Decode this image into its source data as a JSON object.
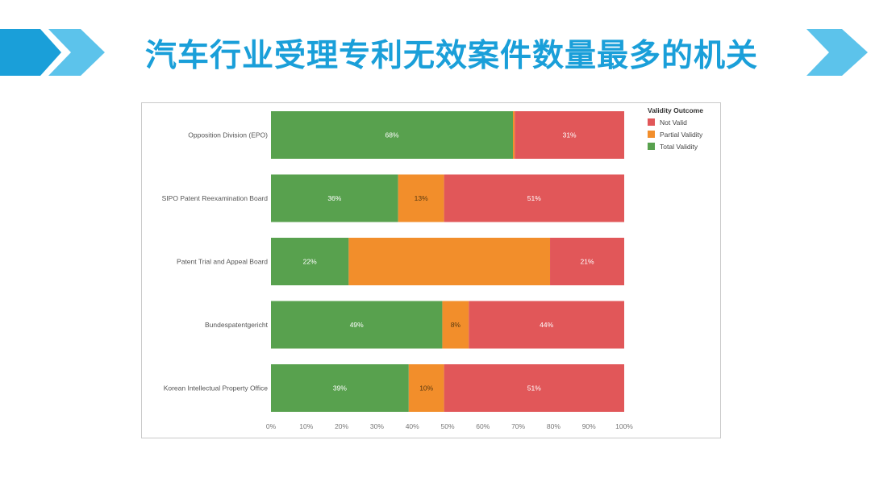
{
  "slide": {
    "title": "汽车行业受理专利无效案件数量最多的机关"
  },
  "chart_data": {
    "type": "bar",
    "orientation": "horizontal",
    "stacked": true,
    "categories": [
      "Opposition Division (EPO)",
      "SIPO Patent Reexamination Board",
      "Patent Trial and Appeal Board",
      "Bundespatentgericht",
      "Korean Intellectual Property Office"
    ],
    "series": [
      {
        "name": "Total Validity",
        "color": "#58a14e",
        "values": [
          68.5,
          36,
          22,
          48.5,
          39
        ],
        "labels": [
          "68%",
          "36%",
          "22%",
          "49%",
          "39%"
        ]
      },
      {
        "name": "Partial Validity",
        "color": "#f28e2b",
        "values": [
          0.5,
          13,
          57,
          7.5,
          10
        ],
        "labels": [
          "",
          "13%",
          "",
          "8%",
          "10%"
        ]
      },
      {
        "name": "Not Valid",
        "color": "#e15759",
        "values": [
          31,
          51,
          21,
          44,
          51
        ],
        "labels": [
          "31%",
          "51%",
          "21%",
          "44%",
          "51%"
        ]
      }
    ],
    "xlim": [
      0,
      100
    ],
    "xticks": [
      "0%",
      "10%",
      "20%",
      "30%",
      "40%",
      "50%",
      "60%",
      "70%",
      "80%",
      "90%",
      "100%"
    ],
    "legend": {
      "title": "Validity Outcome",
      "placement": "top-right",
      "items": [
        {
          "label": "Not Valid",
          "color": "#e15759"
        },
        {
          "label": "Partial Validity",
          "color": "#f28e2b"
        },
        {
          "label": "Total Validity",
          "color": "#58a14e"
        }
      ]
    }
  }
}
